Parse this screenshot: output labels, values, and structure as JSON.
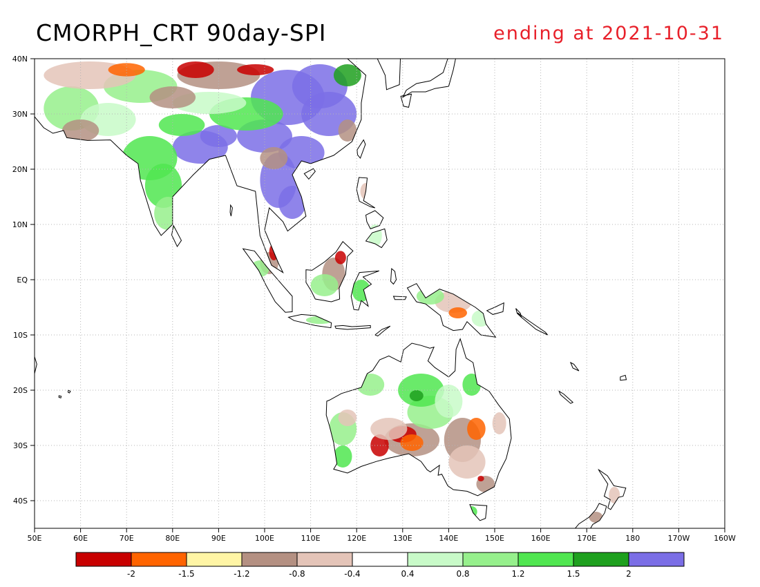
{
  "title": "CMORPH_CRT 90day-SPI",
  "date_label": "ending at 2021-10-31",
  "lat_labels": [
    "40N",
    "30N",
    "20N",
    "10N",
    "EQ",
    "10S",
    "20S",
    "30S",
    "40S"
  ],
  "lon_labels": [
    "50E",
    "60E",
    "70E",
    "80E",
    "90E",
    "100E",
    "110E",
    "120E",
    "130E",
    "140E",
    "150E",
    "160E",
    "170E",
    "180",
    "170W",
    "160W"
  ],
  "colorbar": {
    "colors": [
      "#c80000",
      "#ff6400",
      "#fff5a5",
      "#b49082",
      "#e4c4b8",
      "#ffffff",
      "#c8fac8",
      "#96f08c",
      "#50e650",
      "#1ea01e",
      "#7b6ee6"
    ],
    "labels": [
      "-2",
      "-1.5",
      "-1.2",
      "-0.8",
      "-0.4",
      "0.4",
      "0.8",
      "1.2",
      "1.5",
      "2"
    ]
  },
  "colors": {
    "coast": "#000000",
    "frame": "#000000",
    "grid": "#b4b4b4",
    "date_text": "#e8202a"
  }
}
